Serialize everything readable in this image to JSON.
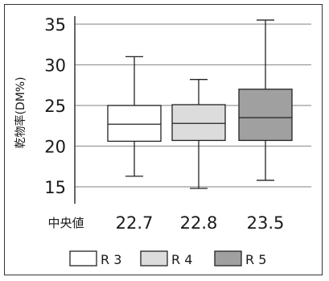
{
  "chart_data": {
    "type": "boxplot",
    "ylabel": "乾物率(DM%)",
    "ylim": [
      12.5,
      37.5
    ],
    "yticks": [
      15,
      20,
      25,
      30,
      35
    ],
    "grid": true,
    "median_label": "中央値",
    "legend_position": "bottom",
    "series": [
      {
        "name": "R 3",
        "color": "#ffffff",
        "min": 16.3,
        "q1": 20.6,
        "median": 22.7,
        "q3": 25.0,
        "max": 31.0,
        "median_text": "22.7"
      },
      {
        "name": "R 4",
        "color": "#dcdcdc",
        "min": 14.8,
        "q1": 20.7,
        "median": 22.8,
        "q3": 25.1,
        "max": 28.2,
        "median_text": "22.8"
      },
      {
        "name": "R 5",
        "color": "#a0a0a0",
        "min": 15.8,
        "q1": 20.7,
        "median": 23.5,
        "q3": 27.0,
        "max": 35.5,
        "median_text": "23.5"
      }
    ]
  }
}
